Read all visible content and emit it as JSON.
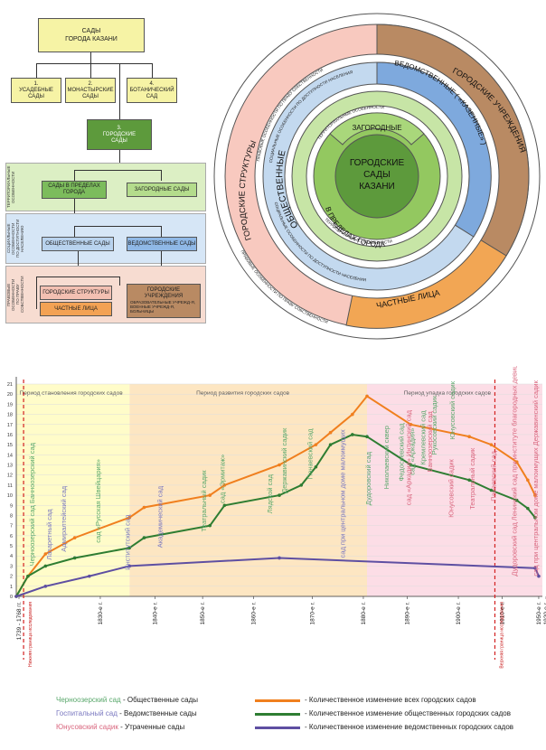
{
  "tree": {
    "root": "САДЫ\nГОРОДА КАЗАНИ",
    "n1": "1.\nУСАДЕБНЫЕ\nСАДЫ",
    "n2": "2.\nМОНАСТЫРСКИЕ\nСАДЫ",
    "n4": "4.\nБОТАНИЧЕСКИЙ\nСАД",
    "n3": "3.\nГОРОДСКИЕ\nСАДЫ",
    "band1_label": "ТЕРРИТОРИАЛЬНЫЕ\nОСОБЕННОСТИ",
    "band2_label": "СОЦИАЛЬНЫЕ\nОСОБЕННОСТИ\nПО ДОСТУПНОСТИ\nНАСЕЛЕНИЮ",
    "band3_label": "ПРАВОВЫЕ\nОСОБЕННОСТИ\nПО ПРАВУ\nСОБСТВЕННОСТИ",
    "in_city": "САДЫ В ПРЕДЕЛАХ\nГОРОДА",
    "suburban": "ЗАГОРОДНЫЕ САДЫ",
    "public": "ОБЩЕСТВЕННЫЕ САДЫ",
    "departmental": "ВЕДОМСТВЕННЫЕ САДЫ",
    "city_structures": "ГОРОДСКИЕ СТРУКТУРЫ",
    "private": "ЧАСТНЫЕ     ЛИЦА",
    "city_institutions": "ГОРОДСКИЕ УЧРЕЖДЕНИЯ",
    "city_institutions_sub": "ОБРАЗОВАТЕЛЬНЫЕ УЧРЕЖД-Я,\nВОЕННЫЕ УЧРЕЖД-Я,\nБОЛЬНИЦЫ"
  },
  "circle": {
    "center": "ГОРОДСКИЕ\nСАДЫ\nКАЗАНИ",
    "suburban": "ЗАГОРОДНЫЕ",
    "in_city": "В ПРЕДЕЛАХ  ГОРОДА",
    "territorial": "ТЕРРИТОРИАЛЬНЫЕ  ОСОБЕННОСТИ",
    "public": "ОБЩЕСТВЕННЫЕ",
    "departmental": "ВЕДОМСТВЕННЫЕ ( «КАЗЕННЫЕ» )",
    "social": "СОЦИАЛЬНЫЕ  ОСОБЕННОСТИ  ПО  ДОСТУПНОСТИ  НАСЕЛЕНИЯ",
    "city_structures": "ГОРОДСКИЕ СТРУКТУРЫ",
    "city_institutions": "ГОРОДСКИЕ  УЧРЕЖДЕНИЯ",
    "private": "ЧАСТНЫЕ ЛИЦА",
    "legal": "ПРАВОВЫЕ  ОСОБЕННОСТИ  ПО  ПРАВУ  СОБСТВЕННОСТИ"
  },
  "chart_data": {
    "type": "line",
    "periods": [
      "Период становления  городских садов",
      "Период развития  городских садов",
      "Период упадка  городских садов"
    ],
    "x_ticks": [
      "1739 - 1768 гг.",
      "1830-е г.",
      "1840-е г.",
      "1850-е г.",
      "1860-е г.",
      "1870-е г.",
      "1880-е г.",
      "1890-е г.",
      "1900-е г.",
      "1910-е г.",
      "1920-е г.",
      "1950-е г."
    ],
    "ylim": [
      0,
      21
    ],
    "y_ticks": [
      "0",
      "1",
      "2",
      "3",
      "4",
      "5",
      "6",
      "7",
      "8",
      "9",
      "10",
      "11",
      "12",
      "13",
      "14",
      "15",
      "16",
      "17",
      "18",
      "19",
      "20",
      "21"
    ],
    "lower_bound_label": "Нижняя граница исследования",
    "upper_bound_label": "Верхняя граница исследования",
    "series": [
      {
        "name": "Количественное изменение всех городских садов",
        "color": "#f07f1e",
        "points": [
          [
            0,
            0
          ],
          [
            1.6,
            2
          ],
          [
            4,
            4.2
          ],
          [
            8,
            5.8
          ],
          [
            15.5,
            7.8
          ],
          [
            17.5,
            8.8
          ],
          [
            26.5,
            10
          ],
          [
            28.5,
            11
          ],
          [
            36,
            13
          ],
          [
            41,
            15
          ],
          [
            43,
            16.2
          ],
          [
            46,
            18
          ],
          [
            48,
            19.8
          ],
          [
            54,
            17
          ],
          [
            62,
            15.8
          ],
          [
            65,
            15
          ],
          [
            68.5,
            13.3
          ],
          [
            70,
            11.5
          ],
          [
            71,
            10
          ]
        ]
      },
      {
        "name": "Количественное изменение общественных городских садов",
        "color": "#2e7d32",
        "points": [
          [
            0,
            0
          ],
          [
            1.6,
            2
          ],
          [
            4,
            3
          ],
          [
            8,
            3.8
          ],
          [
            15.5,
            4.8
          ],
          [
            17.5,
            5.8
          ],
          [
            26.5,
            7
          ],
          [
            28.5,
            9
          ],
          [
            36,
            10
          ],
          [
            39,
            11
          ],
          [
            41,
            12.8
          ],
          [
            43,
            15
          ],
          [
            46,
            16
          ],
          [
            48,
            15.8
          ],
          [
            54,
            13
          ],
          [
            62,
            11.5
          ],
          [
            65,
            10.5
          ],
          [
            68.5,
            9.5
          ],
          [
            70,
            8.7
          ],
          [
            71,
            7.8
          ]
        ]
      },
      {
        "name": "Количественное изменение ведомственных городских садов",
        "color": "#5e4fa2",
        "points": [
          [
            0,
            0
          ],
          [
            4,
            1
          ],
          [
            10,
            2
          ],
          [
            15.5,
            3
          ],
          [
            36,
            3.8
          ],
          [
            71,
            2.8
          ],
          [
            71.5,
            2
          ]
        ]
      }
    ],
    "labels": [
      {
        "text": "Черноозерский сад  Банноозерский сад",
        "color": "#5aa86c"
      },
      {
        "text": "Лазаретный сад",
        "color": "#7a78c0"
      },
      {
        "text": "Адмиралтейский сад",
        "color": "#7a78c0"
      },
      {
        "text": "сад «Русская Швейцария»",
        "color": "#5aa86c"
      },
      {
        "text": "Институтский сад",
        "color": "#7a78c0"
      },
      {
        "text": "Академический сад",
        "color": "#7a78c0"
      },
      {
        "text": "Театральный садик",
        "color": "#5aa86c"
      },
      {
        "text": "сад «Эрмитаж»",
        "color": "#5aa86c"
      },
      {
        "text": "Лядской сад",
        "color": "#5aa86c"
      },
      {
        "text": "Державинский садик",
        "color": "#5aa86c"
      },
      {
        "text": "Панаевский сад",
        "color": "#5aa86c"
      },
      {
        "text": "сад при центральном доме малоимущих",
        "color": "#7a78c0"
      },
      {
        "text": "Дудоровский сад",
        "color": "#5aa86c"
      },
      {
        "text": "Николаевский сквер",
        "color": "#5aa86c"
      },
      {
        "text": "Федосеевский сад",
        "color": "#5aa86c"
      },
      {
        "text": "сад «Аркадия»",
        "color": "#5aa86c"
      },
      {
        "text": "Кремлевский сад",
        "color": "#5aa86c"
      },
      {
        "text": "Рукосовский садик",
        "color": "#5aa86c"
      },
      {
        "text": "Юнусовский садик",
        "color": "#5aa86c"
      },
      {
        "text": "сад «Аркадия»  Интинский сад",
        "color": "#d9667e"
      },
      {
        "text": "Банноозерский сад",
        "color": "#d9667e"
      },
      {
        "text": "Юнусовский садик",
        "color": "#d9667e"
      },
      {
        "text": "Театральный садик",
        "color": "#d9667e"
      },
      {
        "text": "Панаевский сад",
        "color": "#d9667e"
      },
      {
        "text": "Дудоровский сад  Ленинский сад при институте благородных девиц",
        "color": "#d9667e"
      },
      {
        "text": "сад при центральном доме малоимущих  Державинский садик",
        "color": "#d9667e"
      }
    ]
  },
  "legend": {
    "left": [
      {
        "name": "Черноозерский сад",
        "desc": "- Общественные сады",
        "color": "#5aa86c"
      },
      {
        "name": "Госпитальный сад",
        "desc": "- Ведомственные сады",
        "color": "#7a78c0"
      },
      {
        "name": "Юнусовский  садик",
        "desc": "- Утраченные сады",
        "color": "#d9667e"
      }
    ],
    "right": [
      {
        "desc": "- Количественное изменение всех городских садов",
        "color": "#f07f1e"
      },
      {
        "desc": "- Количественное изменение общественных городских садов",
        "color": "#2e7d32"
      },
      {
        "desc": "- Количественное изменение ведомственных городских садов",
        "color": "#5e4fa2"
      }
    ]
  }
}
